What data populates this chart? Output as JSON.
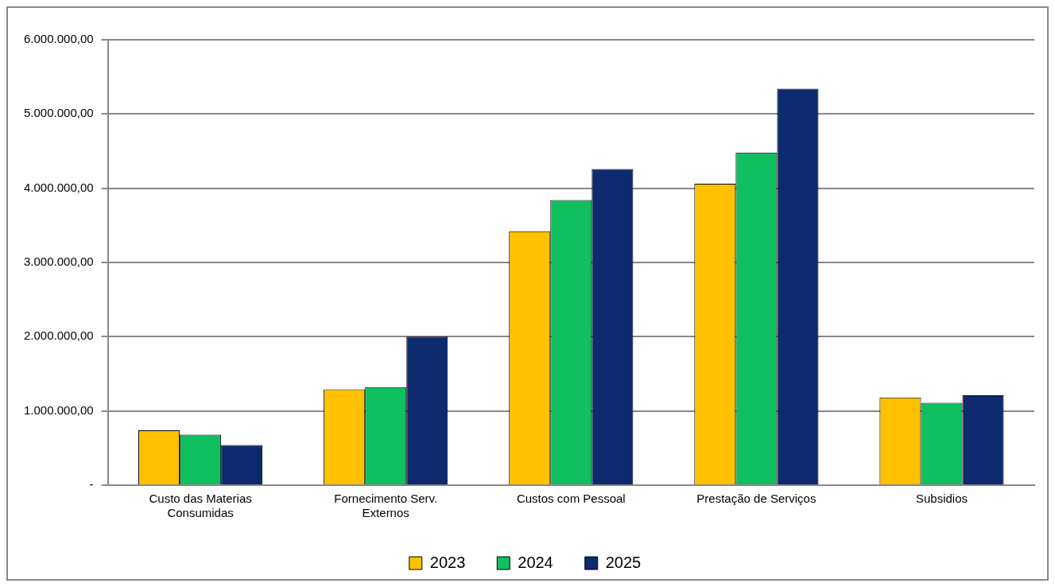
{
  "chart_data": {
    "type": "bar",
    "categories": [
      "Custo das Materias Consumidas",
      "Fornecimento Serv. Externos",
      "Custos com Pessoal",
      "Prestação de Serviços",
      "Subsidios"
    ],
    "series": [
      {
        "name": "2023",
        "color": "#ffc000",
        "values": [
          740000,
          1290000,
          3420000,
          4060000,
          1180000
        ]
      },
      {
        "name": "2024",
        "color": "#10c060",
        "values": [
          680000,
          1320000,
          3840000,
          4480000,
          1110000
        ]
      },
      {
        "name": "2025",
        "color": "#0d2a6e",
        "values": [
          540000,
          2000000,
          4260000,
          5340000,
          1210000
        ]
      }
    ],
    "ylim": [
      0,
      6000000
    ],
    "yticks": [
      {
        "value": 0,
        "label": "-"
      },
      {
        "value": 1000000,
        "label": "1.000.000,00"
      },
      {
        "value": 2000000,
        "label": "2.000.000,00"
      },
      {
        "value": 3000000,
        "label": "3.000.000,00"
      },
      {
        "value": 4000000,
        "label": "4.000.000,00"
      },
      {
        "value": 5000000,
        "label": "5.000.000,00"
      },
      {
        "value": 6000000,
        "label": "6.000.000,00"
      }
    ],
    "grid": "y",
    "legend": "bottom"
  }
}
